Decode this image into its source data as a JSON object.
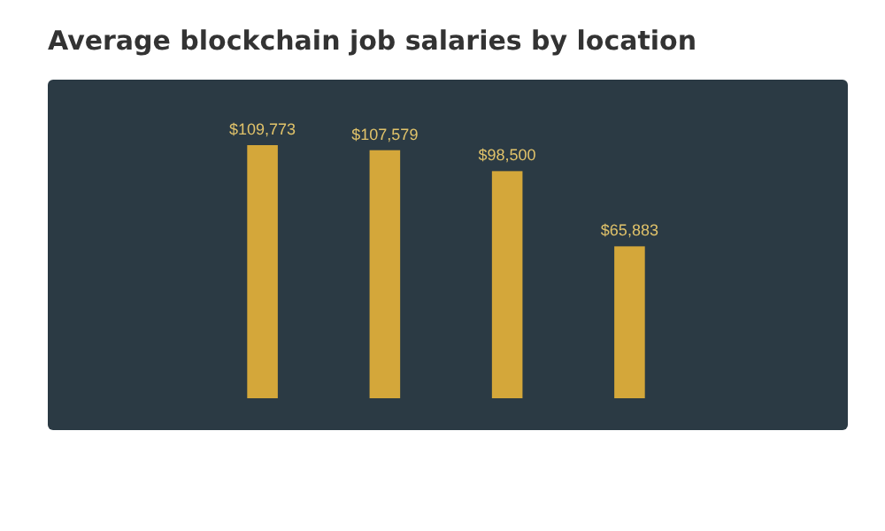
{
  "chart_data": {
    "type": "bar",
    "title": "Average blockchain job salaries by location",
    "categories": [
      null,
      null,
      null,
      null
    ],
    "values": [
      109773,
      107579,
      98500,
      65883
    ],
    "value_labels": [
      "$109,773",
      "$107,579",
      "$98,500",
      "$65,883"
    ],
    "color": "#d4a73a"
  }
}
